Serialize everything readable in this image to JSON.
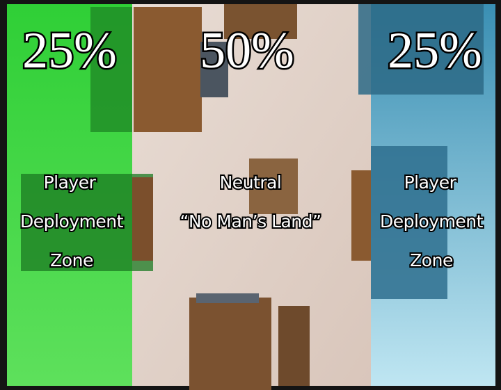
{
  "zones": [
    {
      "share": "25%",
      "label": [
        "Player",
        "Deployment",
        "Zone"
      ]
    },
    {
      "share": "50%",
      "label": [
        "Neutral",
        "“No Man’s Land”"
      ]
    },
    {
      "share": "25%",
      "label": [
        "Player",
        "Deployment",
        "Zone"
      ]
    }
  ]
}
